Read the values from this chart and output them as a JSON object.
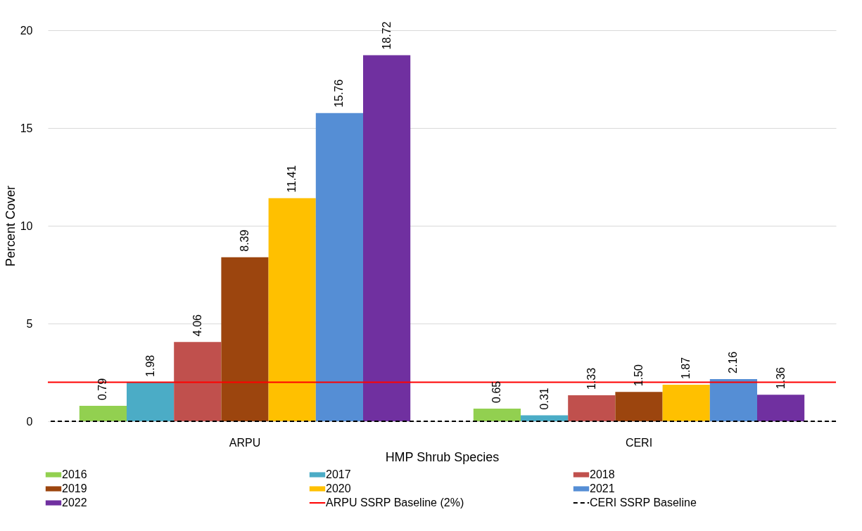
{
  "chart_data": {
    "type": "bar",
    "xlabel": "HMP Shrub Species",
    "ylabel": "Percent Cover",
    "categories": [
      "ARPU",
      "CERI"
    ],
    "series": [
      {
        "name": "2016",
        "color": "#92d050",
        "values": [
          0.79,
          0.65
        ],
        "value_labels": [
          "0.79",
          "0.65"
        ]
      },
      {
        "name": "2017",
        "color": "#4bacc6",
        "values": [
          1.98,
          0.31
        ],
        "value_labels": [
          "1.98",
          "0.31"
        ]
      },
      {
        "name": "2018",
        "color": "#c0504d",
        "values": [
          4.06,
          1.33
        ],
        "value_labels": [
          "4.06",
          "1.33"
        ]
      },
      {
        "name": "2019",
        "color": "#9c450e",
        "values": [
          8.39,
          1.5
        ],
        "value_labels": [
          "8.39",
          "1.50"
        ]
      },
      {
        "name": "2020",
        "color": "#ffc000",
        "values": [
          11.41,
          1.87
        ],
        "value_labels": [
          "11.41",
          "1.87"
        ]
      },
      {
        "name": "2021",
        "color": "#558ed5",
        "values": [
          15.76,
          2.16
        ],
        "value_labels": [
          "15.76",
          "2.16"
        ]
      },
      {
        "name": "2022",
        "color": "#7030a0",
        "values": [
          18.72,
          1.36
        ],
        "value_labels": [
          "18.72",
          "1.36"
        ]
      }
    ],
    "ylim": [
      0,
      20
    ],
    "yticks": [
      0,
      5,
      10,
      15,
      20
    ],
    "grid": "y",
    "legend": "bottom",
    "ref_lines": [
      {
        "axis": "y",
        "value": 2,
        "label": "ARPU SSRP Baseline (2%)",
        "color": "#ff0000",
        "line_style": "solid"
      },
      {
        "axis": "y",
        "value": 0,
        "label": "CERI SSRP Baseline",
        "color": "#000000",
        "line_style": "dashed"
      }
    ]
  }
}
